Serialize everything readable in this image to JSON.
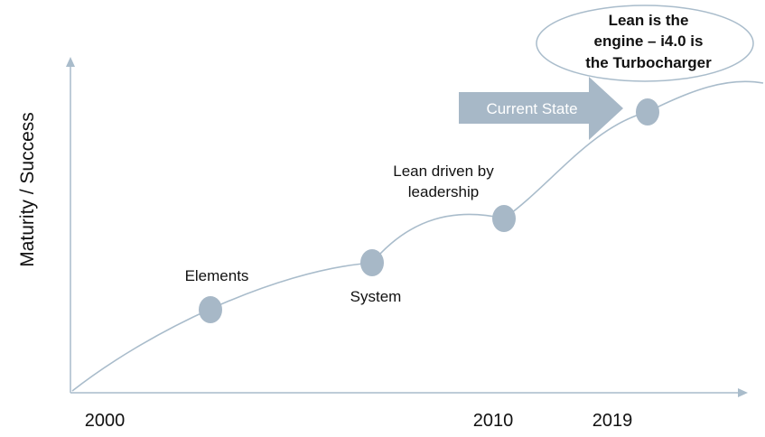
{
  "axis": {
    "ylabel": "Maturity / Success",
    "ticks": [
      "2000",
      "2010",
      "2019"
    ]
  },
  "milestones": [
    {
      "label": "Elements"
    },
    {
      "label": "System"
    },
    {
      "label_lines": [
        "Lean driven by",
        "leadership"
      ]
    },
    {
      "label": ""
    }
  ],
  "arrow": {
    "label": "Current State"
  },
  "callout": {
    "lines": [
      "Lean is the",
      "engine – i4.0 is",
      "the Turbocharger"
    ]
  },
  "colors": {
    "line": "#a9bccb",
    "marker": "#a7b8c7",
    "arrow_fill": "#a7b8c7",
    "arrow_text": "#ffffff",
    "text": "#111111",
    "callout_border": "#a9bccb"
  }
}
